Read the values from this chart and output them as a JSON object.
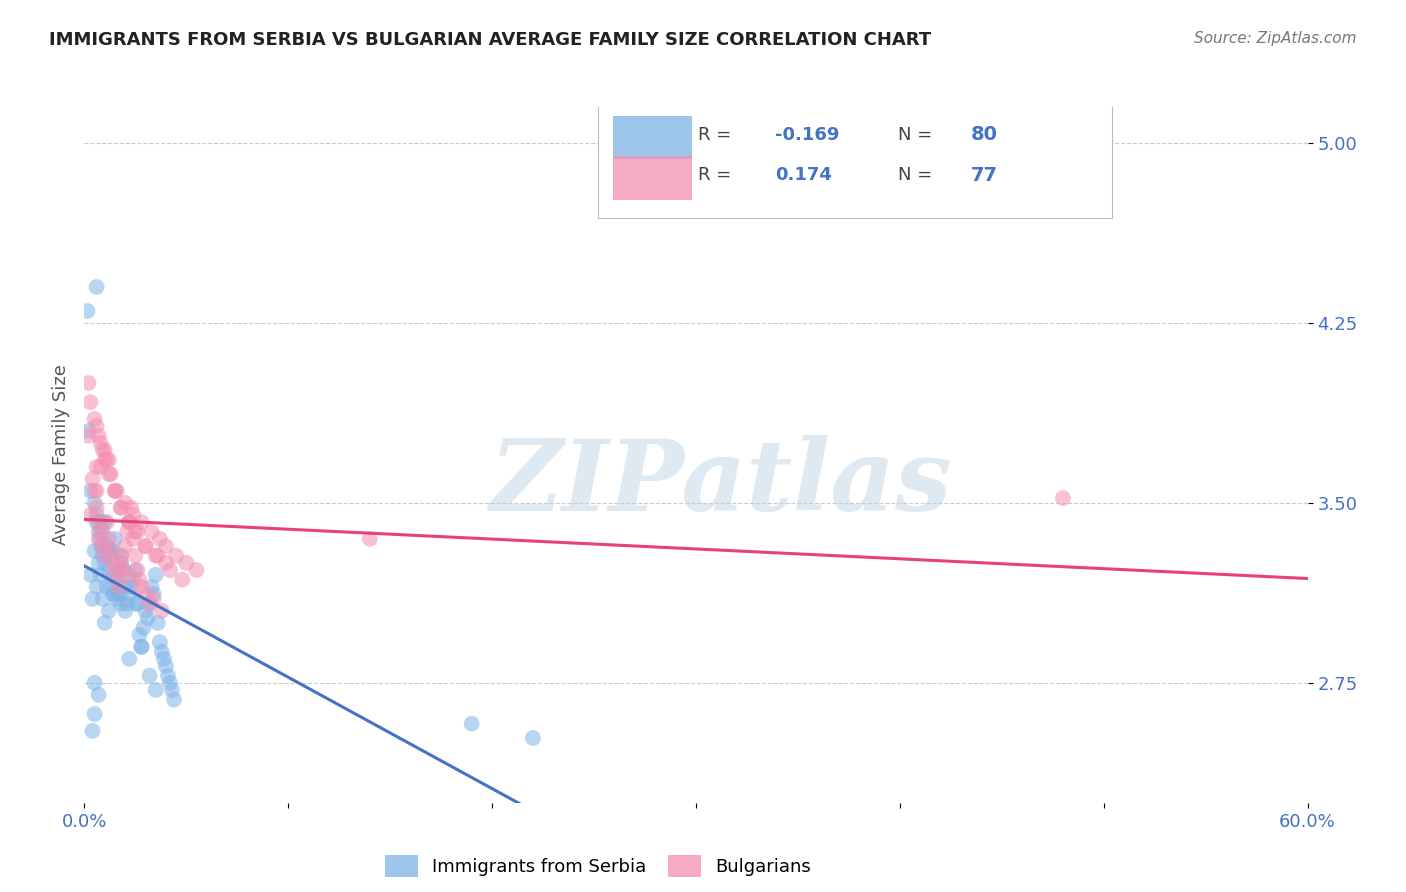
{
  "title": "IMMIGRANTS FROM SERBIA VS BULGARIAN AVERAGE FAMILY SIZE CORRELATION CHART",
  "source": "Source: ZipAtlas.com",
  "ylabel": "Average Family Size",
  "x_min": 0.0,
  "x_max": 0.6,
  "y_min": 2.25,
  "y_max": 5.15,
  "y_ticks": [
    2.75,
    3.5,
    4.25,
    5.0
  ],
  "x_ticks": [
    0.0,
    0.1,
    0.2,
    0.3,
    0.4,
    0.5,
    0.6
  ],
  "x_tick_labels": [
    "0.0%",
    "",
    "",
    "",
    "",
    "",
    "60.0%"
  ],
  "serbia_color": "#7EB3E8",
  "bulgaria_color": "#F48FB1",
  "serbia_line_color": "#4472c4",
  "bulgaria_line_color": "#E8407A",
  "watermark": "ZIPatlas",
  "background_color": "#ffffff",
  "grid_color": "#cccccc",
  "tick_label_color": "#4472c4",
  "serbia_x": [
    0.002,
    0.003,
    0.004,
    0.005,
    0.006,
    0.006,
    0.007,
    0.007,
    0.008,
    0.008,
    0.009,
    0.009,
    0.01,
    0.01,
    0.011,
    0.011,
    0.012,
    0.012,
    0.013,
    0.013,
    0.014,
    0.014,
    0.015,
    0.015,
    0.016,
    0.016,
    0.017,
    0.017,
    0.018,
    0.018,
    0.019,
    0.02,
    0.02,
    0.021,
    0.022,
    0.023,
    0.024,
    0.025,
    0.026,
    0.027,
    0.028,
    0.029,
    0.03,
    0.031,
    0.032,
    0.033,
    0.034,
    0.035,
    0.036,
    0.037,
    0.038,
    0.039,
    0.04,
    0.041,
    0.042,
    0.043,
    0.044,
    0.0015,
    0.003,
    0.035,
    0.01,
    0.012,
    0.015,
    0.005,
    0.006,
    0.008,
    0.018,
    0.022,
    0.028,
    0.032,
    0.025,
    0.008,
    0.009,
    0.005,
    0.007,
    0.19,
    0.22,
    0.006,
    0.004,
    0.005
  ],
  "serbia_y": [
    3.8,
    3.2,
    3.1,
    3.3,
    3.15,
    3.42,
    3.25,
    3.38,
    3.2,
    3.35,
    3.1,
    3.28,
    3.25,
    3.42,
    3.15,
    3.32,
    3.3,
    3.22,
    3.15,
    3.28,
    3.3,
    3.12,
    3.2,
    3.35,
    3.18,
    3.1,
    3.12,
    3.22,
    3.28,
    3.08,
    3.22,
    3.05,
    3.15,
    3.08,
    3.12,
    3.15,
    3.18,
    3.22,
    3.08,
    2.95,
    2.9,
    2.98,
    3.05,
    3.02,
    3.08,
    3.15,
    3.12,
    3.2,
    3.0,
    2.92,
    2.88,
    2.85,
    2.82,
    2.78,
    2.75,
    2.72,
    2.68,
    4.3,
    3.55,
    2.72,
    3.0,
    3.05,
    3.12,
    3.5,
    3.45,
    3.42,
    3.25,
    2.85,
    2.9,
    2.78,
    3.08,
    3.32,
    3.38,
    2.75,
    2.7,
    2.58,
    2.52,
    4.4,
    2.55,
    2.62
  ],
  "bulgaria_x": [
    0.002,
    0.003,
    0.005,
    0.006,
    0.006,
    0.007,
    0.007,
    0.008,
    0.009,
    0.01,
    0.011,
    0.012,
    0.013,
    0.014,
    0.015,
    0.016,
    0.017,
    0.018,
    0.019,
    0.02,
    0.021,
    0.022,
    0.023,
    0.024,
    0.025,
    0.026,
    0.027,
    0.028,
    0.03,
    0.032,
    0.034,
    0.038,
    0.004,
    0.006,
    0.008,
    0.01,
    0.012,
    0.015,
    0.018,
    0.022,
    0.025,
    0.03,
    0.035,
    0.04,
    0.005,
    0.007,
    0.009,
    0.011,
    0.013,
    0.016,
    0.02,
    0.024,
    0.028,
    0.033,
    0.037,
    0.04,
    0.045,
    0.05,
    0.055,
    0.14,
    0.002,
    0.003,
    0.006,
    0.008,
    0.01,
    0.012,
    0.015,
    0.018,
    0.022,
    0.026,
    0.03,
    0.036,
    0.042,
    0.048,
    0.018,
    0.022,
    0.48
  ],
  "bulgaria_y": [
    3.78,
    3.45,
    3.55,
    3.65,
    3.48,
    3.35,
    3.42,
    3.38,
    3.32,
    3.28,
    3.42,
    3.35,
    3.3,
    3.25,
    3.22,
    3.18,
    3.15,
    3.28,
    3.22,
    3.32,
    3.38,
    3.42,
    3.48,
    3.35,
    3.28,
    3.22,
    3.18,
    3.15,
    3.12,
    3.08,
    3.1,
    3.05,
    3.6,
    3.55,
    3.65,
    3.72,
    3.68,
    3.55,
    3.48,
    3.42,
    3.38,
    3.32,
    3.28,
    3.25,
    3.85,
    3.78,
    3.72,
    3.68,
    3.62,
    3.55,
    3.5,
    3.45,
    3.42,
    3.38,
    3.35,
    3.32,
    3.28,
    3.25,
    3.22,
    3.35,
    4.0,
    3.92,
    3.82,
    3.75,
    3.68,
    3.62,
    3.55,
    3.48,
    3.42,
    3.38,
    3.32,
    3.28,
    3.22,
    3.18,
    3.25,
    3.2,
    3.52
  ]
}
